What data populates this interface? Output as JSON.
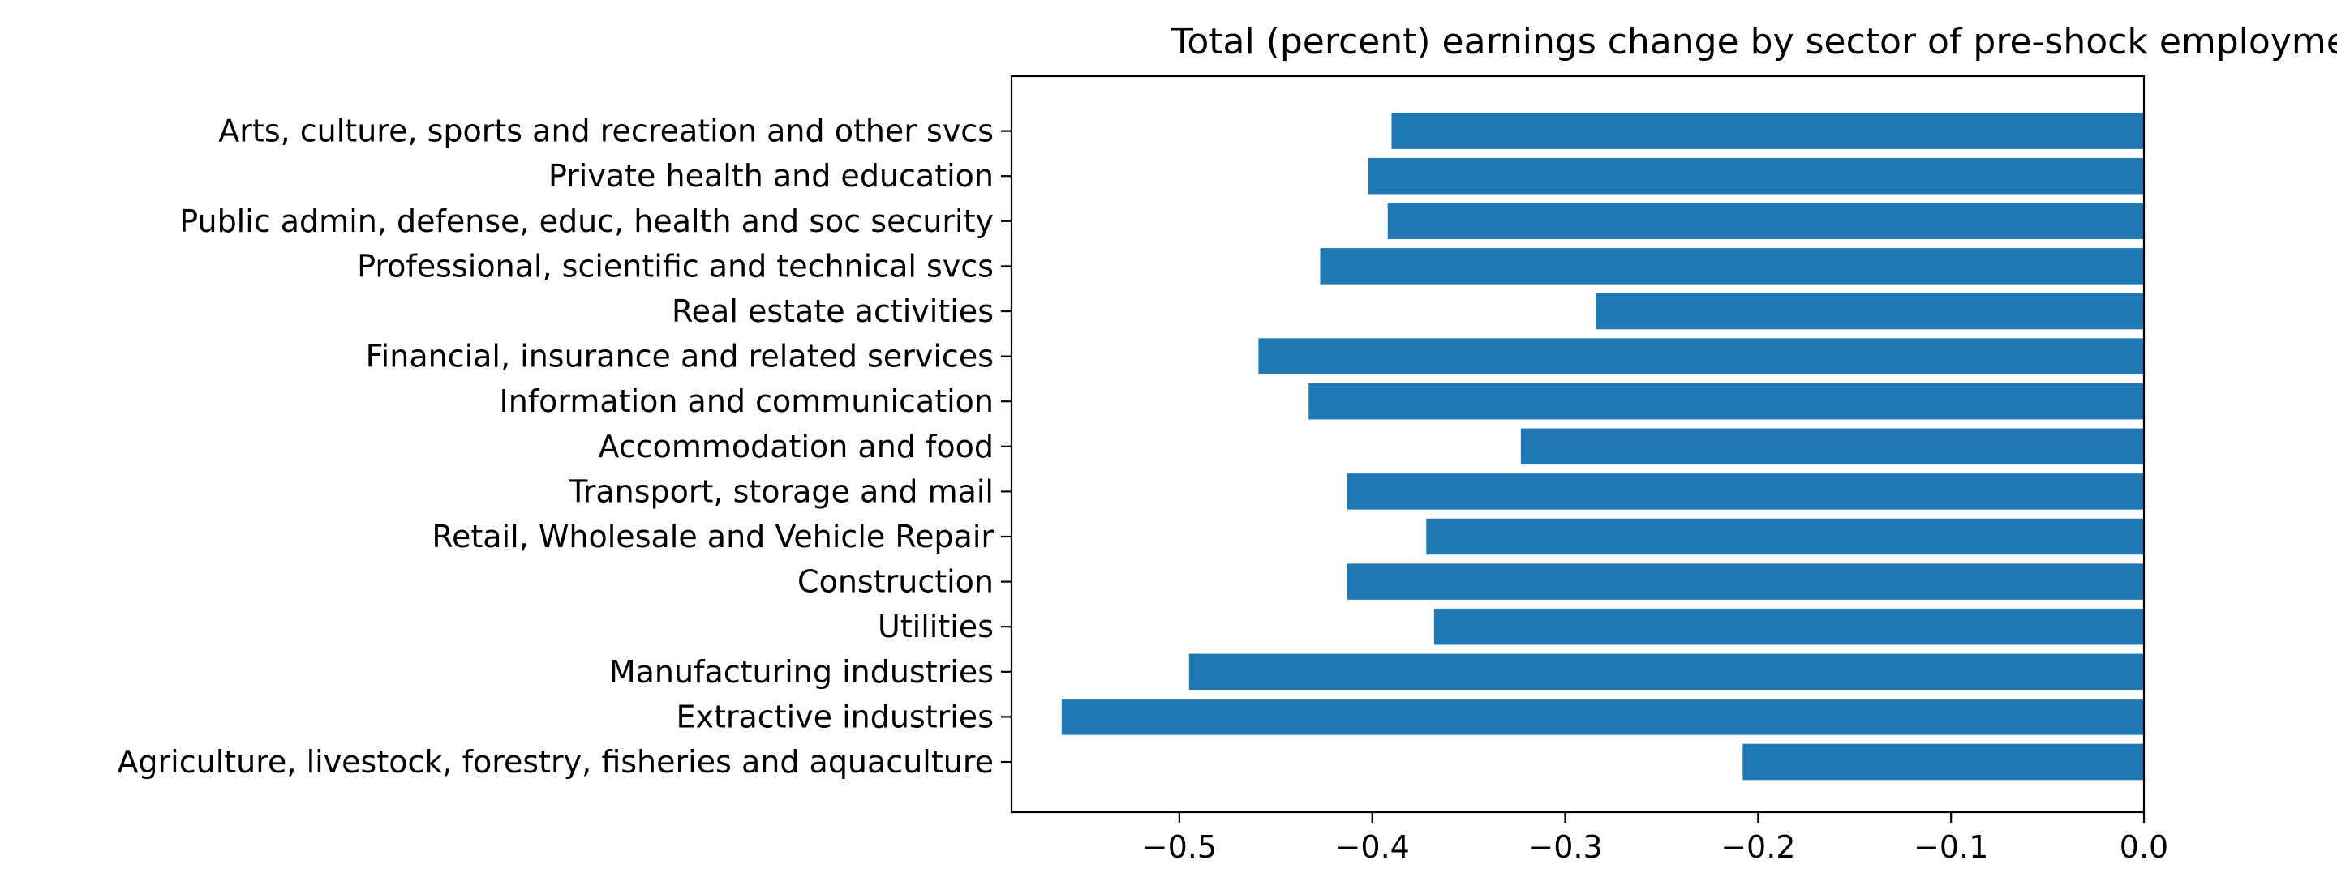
{
  "chart_data": {
    "type": "bar",
    "orientation": "horizontal",
    "title": "Total (percent) earnings change by sector of pre-shock employment, xxx",
    "xlabel": "",
    "ylabel": "",
    "categories": [
      "Agriculture, livestock, forestry, fisheries and aquaculture",
      "Extractive industries",
      "Manufacturing industries",
      "Utilities",
      "Construction",
      "Retail, Wholesale and Vehicle Repair",
      "Transport, storage and mail",
      "Accommodation and food",
      "Information and communication",
      "Financial, insurance and related services",
      "Real estate activities",
      "Professional, scientific and technical svcs",
      "Public admin, defense, educ, health and soc security",
      "Private health and education",
      "Arts, culture, sports and recreation and other svcs"
    ],
    "values": [
      -0.208,
      -0.561,
      -0.495,
      -0.368,
      -0.413,
      -0.372,
      -0.413,
      -0.323,
      -0.433,
      -0.459,
      -0.284,
      -0.427,
      -0.392,
      -0.402,
      -0.39
    ],
    "xlim": [
      -0.587,
      0.0
    ],
    "xticks": [
      -0.5,
      -0.4,
      -0.3,
      -0.2,
      -0.1,
      0.0
    ],
    "xtick_labels": [
      "−0.5",
      "−0.4",
      "−0.3",
      "−0.2",
      "−0.1",
      "0.0"
    ],
    "bar_color": "#1f77b4",
    "grid": false,
    "legend": "none"
  }
}
